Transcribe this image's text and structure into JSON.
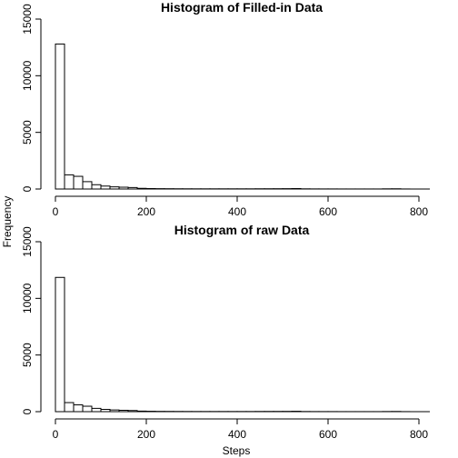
{
  "shared": {
    "ylabel": "Frequency",
    "xlabel": "Steps"
  },
  "chart_data": [
    {
      "type": "bar",
      "title": "Histogram of Filled-in Data",
      "bin_width": 20,
      "bins_start": 0,
      "values": [
        12800,
        1250,
        1120,
        650,
        380,
        260,
        190,
        160,
        130,
        60,
        40,
        30,
        25,
        20,
        18,
        15,
        15,
        15,
        15,
        15,
        15,
        15,
        20,
        22,
        25,
        30,
        40,
        15,
        10,
        8,
        8,
        6,
        5,
        5,
        5,
        5,
        15,
        20,
        5
      ],
      "xlim": [
        0,
        800
      ],
      "ylim": [
        0,
        15000
      ],
      "x_ticks": [
        0,
        200,
        400,
        600,
        800
      ],
      "y_ticks": [
        0,
        5000,
        10000,
        15000
      ]
    },
    {
      "type": "bar",
      "title": "Histogram of raw Data",
      "bin_width": 20,
      "bins_start": 0,
      "values": [
        11850,
        800,
        600,
        480,
        290,
        200,
        150,
        120,
        100,
        50,
        35,
        25,
        22,
        18,
        15,
        14,
        13,
        13,
        13,
        13,
        13,
        13,
        18,
        20,
        22,
        25,
        35,
        13,
        9,
        7,
        7,
        5,
        4,
        4,
        4,
        4,
        12,
        18,
        4
      ],
      "xlim": [
        0,
        800
      ],
      "ylim": [
        0,
        15000
      ],
      "x_ticks": [
        0,
        200,
        400,
        600,
        800
      ],
      "y_ticks": [
        0,
        5000,
        10000,
        15000
      ]
    }
  ]
}
